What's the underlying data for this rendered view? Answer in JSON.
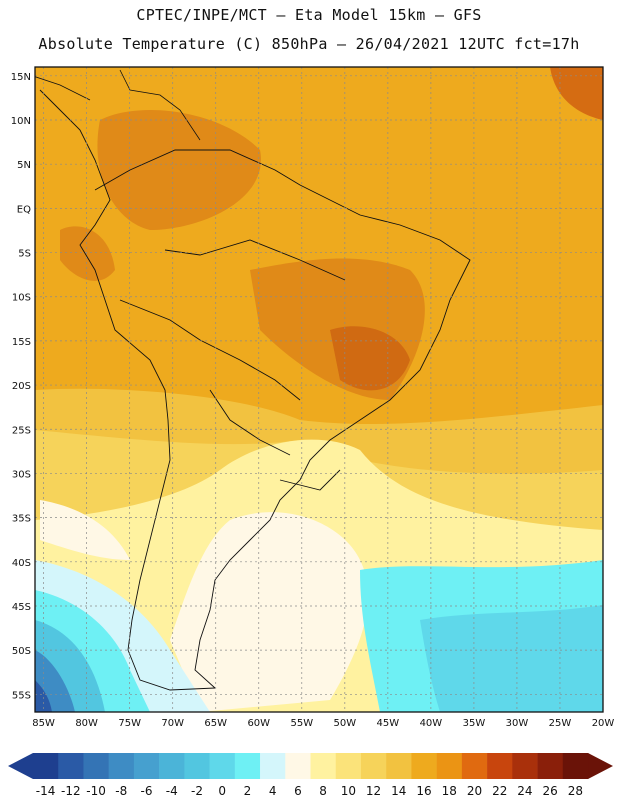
{
  "header": {
    "title_line1": "CPTEC/INPE/MCT –  Eta Model 15km – GFS",
    "title_line2": "Absolute Temperature (C) 850hPa – 26/04/2021 12UTC fct=17h"
  },
  "map": {
    "lat_labels": [
      "15N",
      "10N",
      "5N",
      "EQ",
      "5S",
      "10S",
      "15S",
      "20S",
      "25S",
      "30S",
      "35S",
      "40S",
      "45S",
      "50S",
      "55S"
    ],
    "lon_labels": [
      "85W",
      "80W",
      "75W",
      "70W",
      "65W",
      "60W",
      "55W",
      "50W",
      "45W",
      "40W",
      "35W",
      "30W",
      "25W",
      "20W"
    ],
    "lat_range": [
      16,
      -57
    ],
    "lon_range": [
      -86,
      -20
    ],
    "grid": true
  },
  "colorbar": {
    "labels": [
      "-14",
      "-12",
      "-10",
      "-8",
      "-6",
      "-4",
      "-2",
      "0",
      "2",
      "4",
      "6",
      "8",
      "10",
      "12",
      "14",
      "16",
      "18",
      "20",
      "22",
      "24",
      "26",
      "28"
    ],
    "colors": [
      "#1e3f8f",
      "#2a5aa6",
      "#3474b5",
      "#3e8cc4",
      "#46a0cf",
      "#4bb4d8",
      "#52c6e0",
      "#5fd8ea",
      "#6ef0f4",
      "#d4f6fb",
      "#fff8e6",
      "#fff2a0",
      "#fbe37a",
      "#f6d35a",
      "#f2c240",
      "#eeaa1e",
      "#eb9414",
      "#e06a10",
      "#c8450d",
      "#a9300b",
      "#8a1f0a",
      "#6a1308"
    ]
  }
}
